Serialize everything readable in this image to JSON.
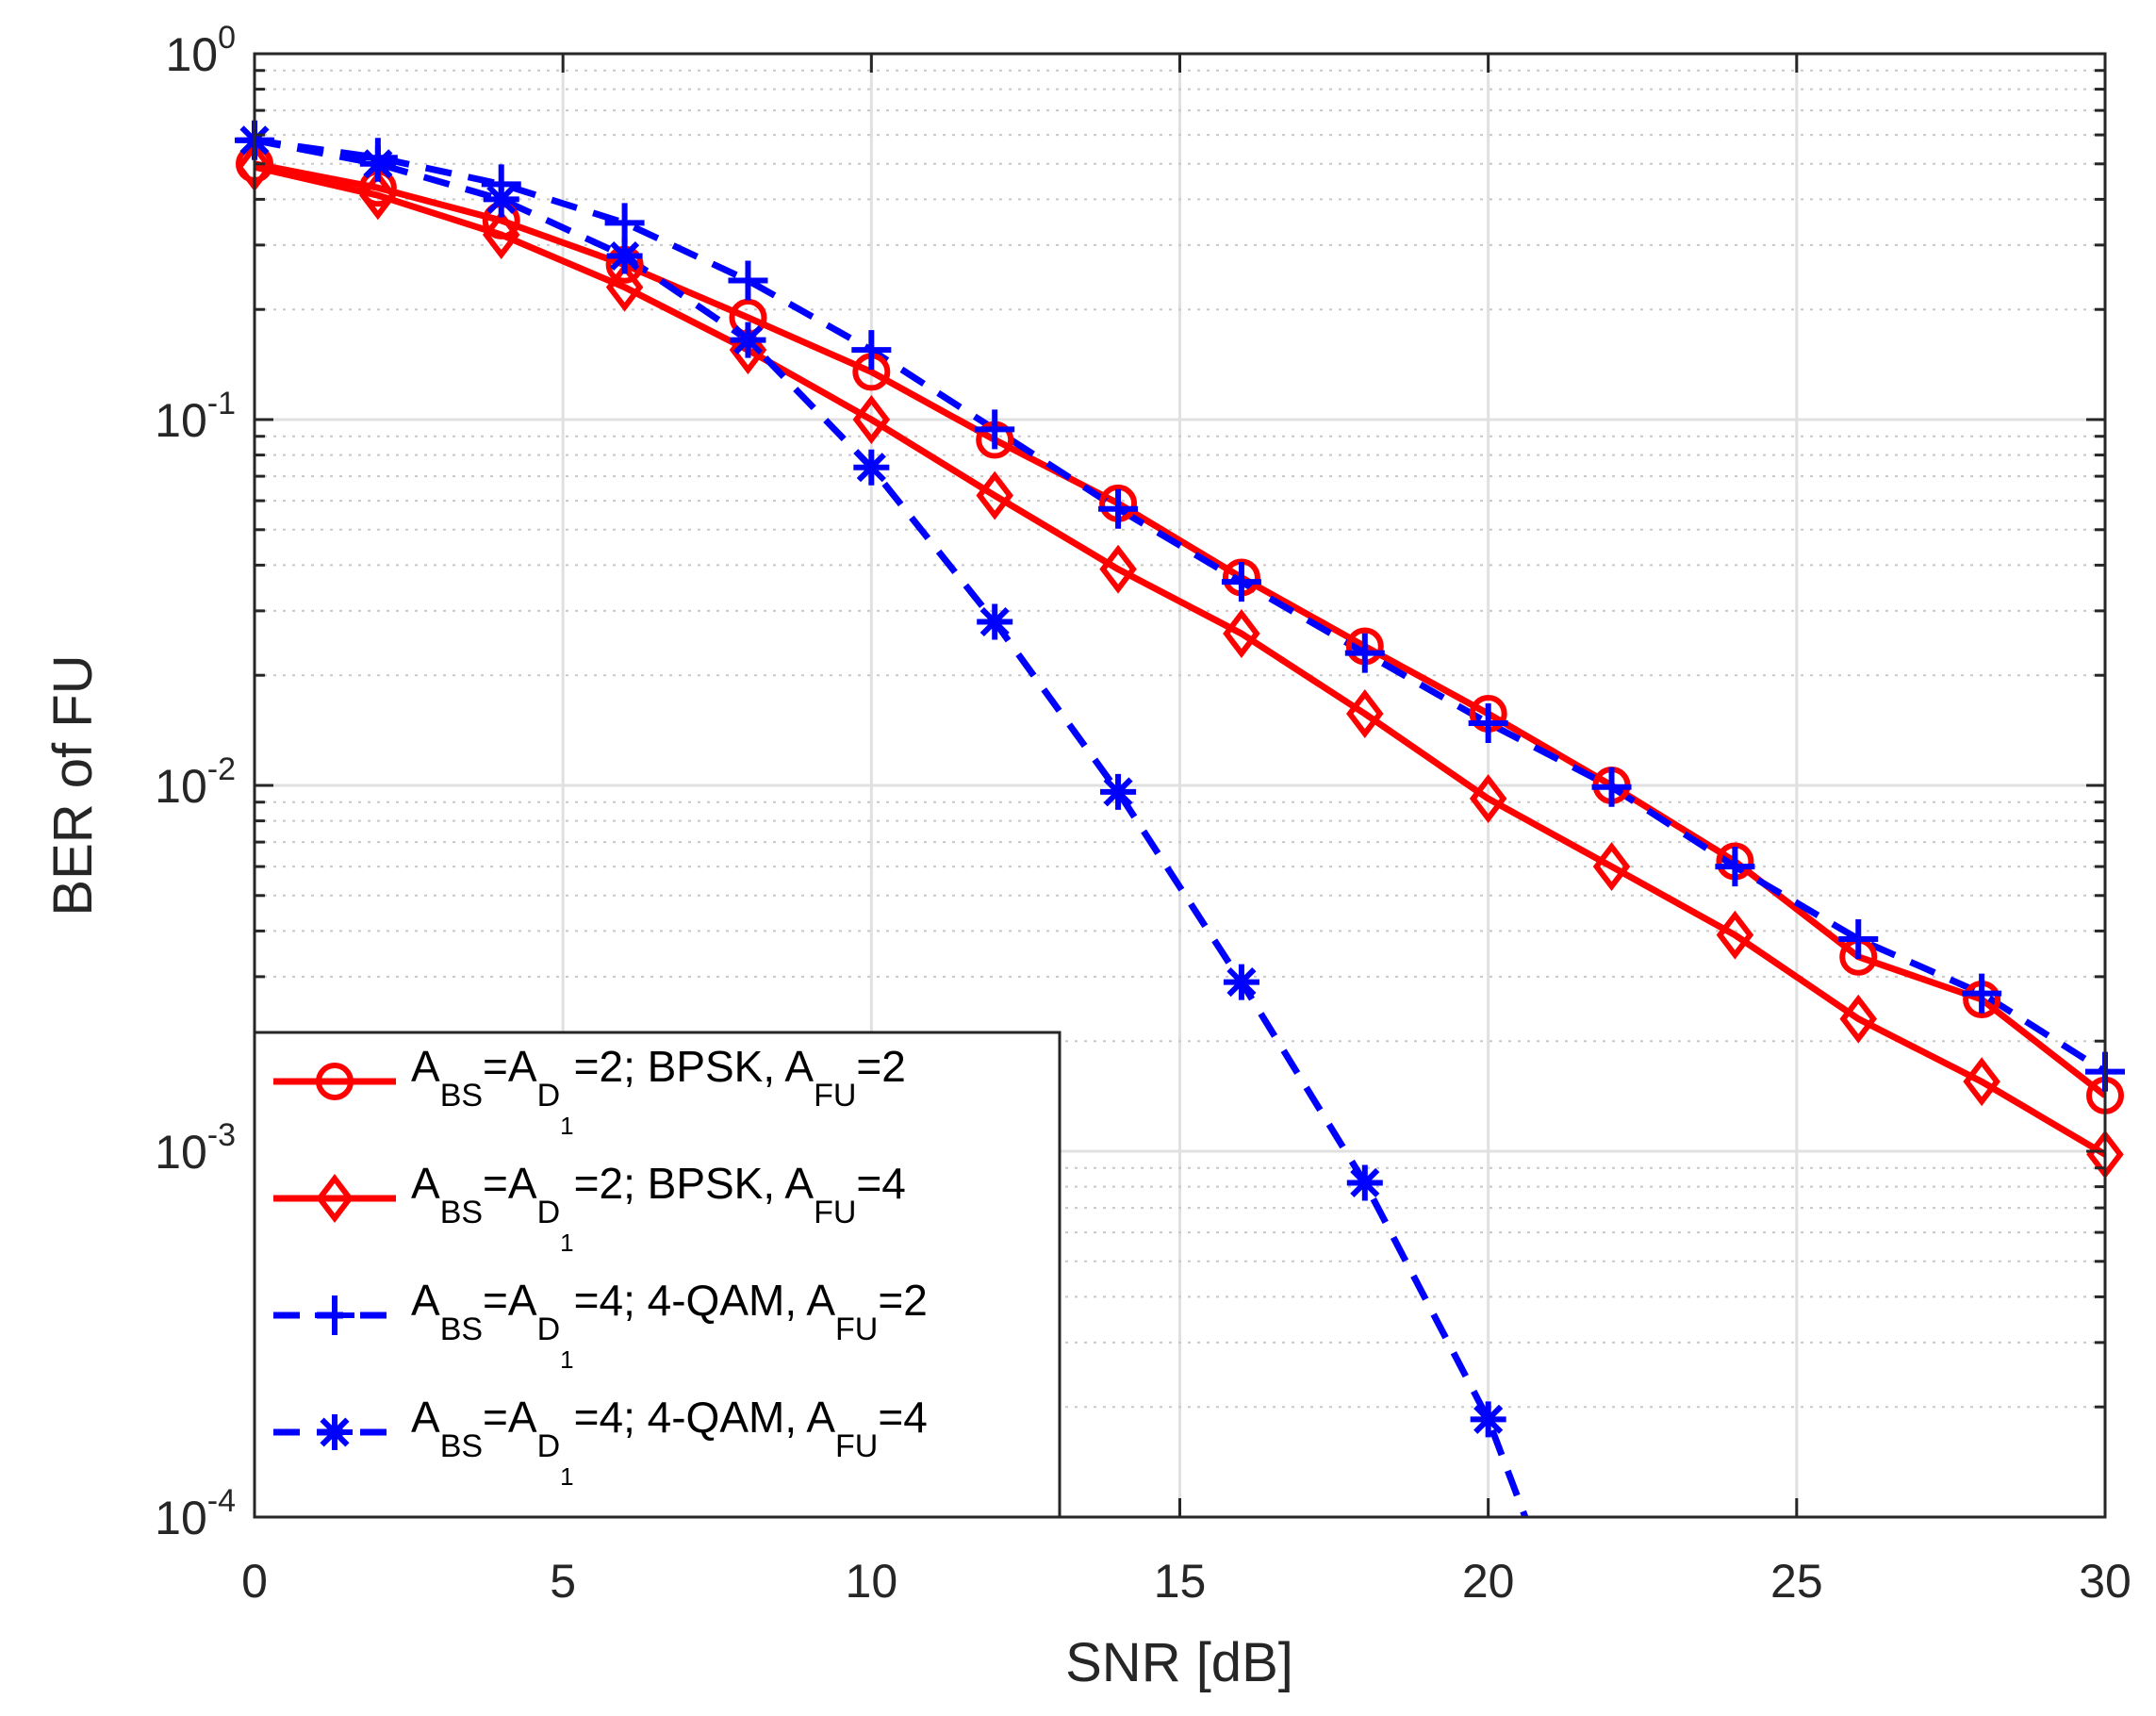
{
  "chart_data": {
    "type": "line",
    "title": "",
    "xlabel": "SNR [dB]",
    "ylabel": "BER of FU",
    "xlim": [
      0,
      30
    ],
    "ylim": [
      0.0001,
      1
    ],
    "yscale": "log",
    "grid": true,
    "legend_position": "bottom-left",
    "x_ticks": [
      {
        "value": 0,
        "label": "0"
      },
      {
        "value": 5,
        "label": "5"
      },
      {
        "value": 10,
        "label": "10"
      },
      {
        "value": 15,
        "label": "15"
      },
      {
        "value": 20,
        "label": "20"
      },
      {
        "value": 25,
        "label": "25"
      },
      {
        "value": 30,
        "label": "30"
      }
    ],
    "y_ticks": [
      {
        "value": 1,
        "base": "10",
        "exp": "0"
      },
      {
        "value": 0.1,
        "base": "10",
        "exp": "-1"
      },
      {
        "value": 0.01,
        "base": "10",
        "exp": "-2"
      },
      {
        "value": 0.001,
        "base": "10",
        "exp": "-3"
      },
      {
        "value": 0.0001,
        "base": "10",
        "exp": "-4"
      }
    ],
    "series": [
      {
        "name": "A_BS=A_D1=2; BPSK, A_FU=2",
        "color": "#ff0000",
        "line": "solid",
        "marker": "circle",
        "label_parts": {
          "a": "A",
          "bs": "BS",
          "eq1": "=A",
          "d": "D",
          "one": "1",
          "rest": "=2; BPSK, A",
          "fu": "FU",
          "end": "=2"
        },
        "x": [
          0,
          2,
          4,
          6,
          8,
          10,
          12,
          14,
          16,
          18,
          20,
          22,
          24,
          26,
          28,
          30
        ],
        "values": [
          0.5,
          0.43,
          0.35,
          0.265,
          0.19,
          0.135,
          0.088,
          0.059,
          0.037,
          0.024,
          0.0157,
          0.01,
          0.0062,
          0.0034,
          0.0026,
          0.00142
        ]
      },
      {
        "name": "A_BS=A_D1=2; BPSK, A_FU=4",
        "color": "#ff0000",
        "line": "solid",
        "marker": "diamond",
        "label_parts": {
          "a": "A",
          "bs": "BS",
          "eq1": "=A",
          "d": "D",
          "one": "1",
          "rest": "=2; BPSK, A",
          "fu": "FU",
          "end": "=4"
        },
        "x": [
          0,
          2,
          4,
          6,
          8,
          10,
          12,
          14,
          16,
          18,
          20,
          22,
          24,
          26,
          28,
          30
        ],
        "values": [
          0.49,
          0.41,
          0.32,
          0.23,
          0.155,
          0.1,
          0.062,
          0.039,
          0.026,
          0.0157,
          0.0092,
          0.006,
          0.0039,
          0.0023,
          0.00155,
          0.00098
        ]
      },
      {
        "name": "A_BS=A_D1=4; 4-QAM, A_FU=2",
        "color": "#0000ff",
        "line": "dashed",
        "marker": "plus",
        "label_parts": {
          "a": "A",
          "bs": "BS",
          "eq1": "=A",
          "d": "D",
          "one": "1",
          "rest": "=4; 4-QAM, A",
          "fu": "FU",
          "end": "=2"
        },
        "x": [
          0,
          2,
          4,
          6,
          8,
          10,
          12,
          14,
          16,
          18,
          20,
          22,
          24,
          26,
          28,
          30
        ],
        "values": [
          0.58,
          0.52,
          0.44,
          0.345,
          0.24,
          0.155,
          0.094,
          0.057,
          0.036,
          0.023,
          0.0148,
          0.0099,
          0.006,
          0.0038,
          0.0027,
          0.00165
        ]
      },
      {
        "name": "A_BS=A_D1=4; 4-QAM, A_FU=4",
        "color": "#0000ff",
        "line": "dashed",
        "marker": "asterisk",
        "label_parts": {
          "a": "A",
          "bs": "BS",
          "eq1": "=A",
          "d": "D",
          "one": "1",
          "rest": "=4; 4-QAM, A",
          "fu": "FU",
          "end": "=4"
        },
        "x": [
          0,
          2,
          4,
          6,
          8,
          10,
          12,
          14,
          16,
          18,
          20,
          20.6
        ],
        "values": [
          0.58,
          0.5,
          0.4,
          0.28,
          0.165,
          0.074,
          0.028,
          0.0096,
          0.0029,
          0.00082,
          0.000185,
          0.0001
        ],
        "marker_count": 11
      }
    ]
  }
}
